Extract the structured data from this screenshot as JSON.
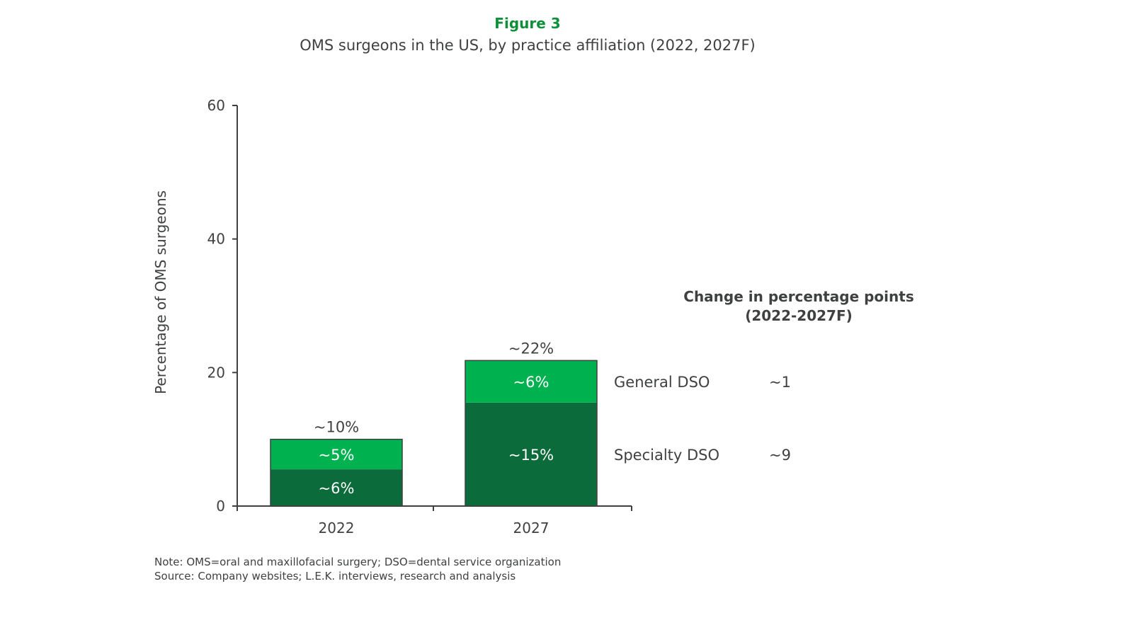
{
  "figure_label": "Figure 3",
  "title": "OMS surgeons in the US, by practice affiliation (2022, 2027F)",
  "colors": {
    "specialty": "#0b6b3a",
    "general": "#00b150",
    "brand_green": "#0f8f3a",
    "text": "#3f4141"
  },
  "chart_data": {
    "type": "bar",
    "stacked": true,
    "categories": [
      "2022",
      "2027"
    ],
    "series": [
      {
        "name": "Specialty DSO",
        "values": [
          5.5,
          15.5
        ],
        "labels": [
          "~6%",
          "~15%"
        ]
      },
      {
        "name": "General DSO",
        "values": [
          4.5,
          6.3
        ],
        "labels": [
          "~5%",
          "~6%"
        ]
      }
    ],
    "totals": [
      "~10%",
      "~22%"
    ],
    "ylabel": "Percentage of OMS surgeons",
    "xlabel": "",
    "ylim": [
      0,
      60
    ],
    "yticks": [
      "0",
      "20",
      "40",
      "60"
    ],
    "grid": false,
    "legend_placement": "right, inline labels"
  },
  "change_table": {
    "heading_line1": "Change in percentage points",
    "heading_line2": "(2022-2027F)",
    "rows": [
      {
        "series": "General DSO",
        "value": "~1"
      },
      {
        "series": "Specialty DSO",
        "value": "~9"
      }
    ]
  },
  "notes": {
    "note": "Note: OMS=oral and maxillofacial surgery; DSO=dental service organization",
    "source": "Source: Company websites; L.E.K. interviews, research and analysis"
  }
}
